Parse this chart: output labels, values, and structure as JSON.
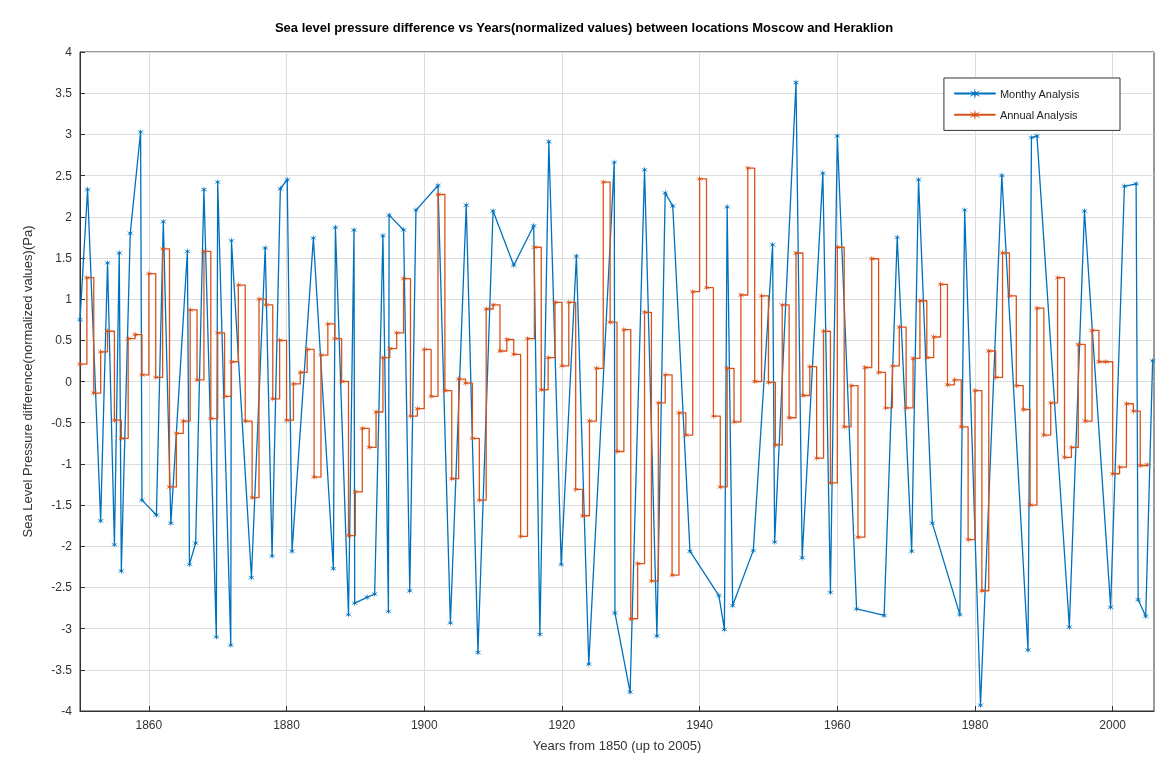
{
  "chart_data": {
    "type": "line",
    "title": "Sea level pressure difference vs Years(normalized values) between locations Moscow and Heraklion",
    "xlabel": "Years from 1850 (up to 2005)",
    "ylabel": "Sea Level Pressure difference(normalized values)(Pa)",
    "xlim": [
      1850,
      2006
    ],
    "xticks": [
      1860,
      1880,
      1900,
      1920,
      1940,
      1960,
      1980,
      2000
    ],
    "ylim": [
      -4,
      4
    ],
    "yticks": [
      -4,
      -3.5,
      -3,
      -2.5,
      -2,
      -1.5,
      -1,
      -0.5,
      0,
      0.5,
      1,
      1.5,
      2,
      2.5,
      3,
      3.5,
      4
    ],
    "grid": true,
    "legend": "top right",
    "marker": "cross",
    "line_style": "solid",
    "series": [
      {
        "name": "Monthy Analysis",
        "color": "#0072bd",
        "x": [
          1850.0,
          1851.1,
          1853.0,
          1854.0,
          1855.0,
          1855.7,
          1856.0,
          1857.3,
          1858.8,
          1859.0,
          1861.1,
          1862.1,
          1863.2,
          1865.6,
          1865.9,
          1866.8,
          1868.0,
          1869.8,
          1870.0,
          1871.9,
          1872.0,
          1874.9,
          1876.9,
          1877.9,
          1879.1,
          1880.1,
          1880.8,
          1883.9,
          1886.8,
          1887.1,
          1889.0,
          1889.8,
          1889.9,
          1891.7,
          1892.8,
          1894.0,
          1894.8,
          1894.9,
          1897.0,
          1897.9,
          1898.8,
          1902.0,
          1903.8,
          1906.1,
          1907.8,
          1910.0,
          1913.0,
          1915.9,
          1916.8,
          1918.1,
          1919.9,
          1922.1,
          1923.9,
          1927.6,
          1927.7,
          1929.9,
          1932.0,
          1933.8,
          1935.0,
          1936.1,
          1938.6,
          1942.8,
          1943.6,
          1944.0,
          1944.8,
          1947.8,
          1950.6,
          1950.9,
          1954.0,
          1954.9,
          1957.9,
          1959.0,
          1960.0,
          1962.8,
          1966.8,
          1968.7,
          1970.8,
          1971.8,
          1973.8,
          1977.8,
          1978.5,
          1980.8,
          1983.9,
          1987.7,
          1988.2,
          1989.0,
          1993.7,
          1995.9,
          1999.7,
          2001.7,
          2003.4,
          2003.7,
          2004.8,
          2005.8
        ],
        "values": [
          0.75,
          2.33,
          -1.69,
          1.44,
          -1.98,
          1.56,
          -2.3,
          1.8,
          3.03,
          -1.44,
          -1.62,
          1.94,
          -1.72,
          1.58,
          -2.22,
          -1.96,
          2.33,
          -3.1,
          2.42,
          -3.2,
          1.71,
          -2.38,
          1.62,
          -2.12,
          2.34,
          2.45,
          -2.06,
          1.74,
          -2.27,
          1.87,
          -2.83,
          1.84,
          -2.69,
          -2.62,
          -2.58,
          1.77,
          -2.79,
          2.02,
          1.84,
          -2.54,
          2.08,
          2.38,
          -2.93,
          2.14,
          -3.29,
          2.07,
          1.41,
          1.89,
          -3.07,
          2.91,
          -2.22,
          1.52,
          -3.43,
          2.66,
          -2.81,
          -3.77,
          2.57,
          -3.09,
          2.29,
          2.13,
          -2.06,
          -2.6,
          -3.01,
          2.12,
          -2.72,
          -2.05,
          1.66,
          -1.95,
          3.63,
          -2.14,
          2.53,
          -2.56,
          2.98,
          -2.76,
          -2.84,
          1.75,
          -2.06,
          2.45,
          -1.72,
          -2.83,
          2.08,
          -3.93,
          2.5,
          -3.26,
          2.96,
          2.98,
          -2.98,
          2.07,
          -2.74,
          2.37,
          2.4,
          -2.65,
          -2.85,
          0.25
        ]
      },
      {
        "name": "Annual Analysis",
        "type": "step",
        "color": "#d95319",
        "x": [
          1850,
          1851,
          1852,
          1853,
          1854,
          1855,
          1856,
          1857,
          1858,
          1859,
          1860,
          1861,
          1862,
          1863,
          1864,
          1865,
          1866,
          1867,
          1868,
          1869,
          1870,
          1871,
          1872,
          1873,
          1874,
          1875,
          1876,
          1877,
          1878,
          1879,
          1880,
          1881,
          1882,
          1883,
          1884,
          1885,
          1886,
          1887,
          1888,
          1889,
          1890,
          1891,
          1892,
          1893,
          1894,
          1895,
          1896,
          1897,
          1898,
          1899,
          1900,
          1901,
          1902,
          1903,
          1904,
          1905,
          1906,
          1907,
          1908,
          1909,
          1910,
          1911,
          1912,
          1913,
          1914,
          1915,
          1916,
          1917,
          1918,
          1919,
          1920,
          1921,
          1922,
          1923,
          1924,
          1925,
          1926,
          1927,
          1928,
          1929,
          1930,
          1931,
          1932,
          1933,
          1934,
          1935,
          1936,
          1937,
          1938,
          1939,
          1940,
          1941,
          1942,
          1943,
          1944,
          1945,
          1946,
          1947,
          1948,
          1949,
          1950,
          1951,
          1952,
          1953,
          1954,
          1955,
          1956,
          1957,
          1958,
          1959,
          1960,
          1961,
          1962,
          1963,
          1964,
          1965,
          1966,
          1967,
          1968,
          1969,
          1970,
          1971,
          1972,
          1973,
          1974,
          1975,
          1976,
          1977,
          1978,
          1979,
          1980,
          1981,
          1982,
          1983,
          1984,
          1985,
          1986,
          1987,
          1988,
          1989,
          1990,
          1991,
          1992,
          1993,
          1994,
          1995,
          1996,
          1997,
          1998,
          1999,
          2000,
          2001,
          2002,
          2003,
          2004,
          2005
        ],
        "values": [
          0.21,
          1.26,
          -0.14,
          0.36,
          0.61,
          -0.47,
          -0.69,
          0.52,
          0.57,
          0.08,
          1.31,
          0.05,
          1.61,
          -1.28,
          -0.63,
          -0.48,
          0.87,
          0.02,
          1.58,
          -0.45,
          0.59,
          -0.18,
          0.24,
          1.17,
          -0.48,
          -1.41,
          1.0,
          0.93,
          -0.21,
          0.5,
          -0.47,
          -0.03,
          0.11,
          0.39,
          -1.16,
          0.32,
          0.7,
          0.52,
          0.0,
          -1.87,
          -1.34,
          -0.57,
          -0.8,
          -0.37,
          0.29,
          0.4,
          0.59,
          1.25,
          -0.42,
          -0.33,
          0.39,
          -0.18,
          2.27,
          -0.11,
          -1.18,
          0.03,
          -0.02,
          -0.69,
          -1.44,
          0.88,
          0.93,
          0.37,
          0.51,
          0.33,
          -1.88,
          0.52,
          1.63,
          -0.1,
          0.29,
          0.96,
          0.19,
          0.96,
          -1.31,
          -1.63,
          -0.48,
          0.16,
          2.42,
          0.72,
          -0.85,
          0.63,
          -2.88,
          -2.21,
          0.84,
          -2.42,
          -0.26,
          0.08,
          -2.35,
          -0.38,
          -0.65,
          1.09,
          2.46,
          1.14,
          -0.42,
          -1.28,
          0.16,
          -0.49,
          1.05,
          2.59,
          0.0,
          1.04,
          -0.01,
          -0.77,
          0.93,
          -0.44,
          1.56,
          -0.17,
          0.18,
          -0.93,
          0.61,
          -1.23,
          1.63,
          -0.55,
          -0.05,
          -1.89,
          0.17,
          1.49,
          0.11,
          -0.32,
          0.19,
          0.66,
          -0.32,
          0.28,
          0.98,
          0.29,
          0.54,
          1.18,
          -0.04,
          0.02,
          -0.55,
          -1.92,
          -0.11,
          -2.54,
          0.37,
          0.05,
          1.56,
          1.04,
          -0.05,
          -0.34,
          -1.5,
          0.89,
          -0.65,
          -0.26,
          1.26,
          -0.92,
          -0.8,
          0.45,
          -0.48,
          0.62,
          0.24,
          0.24,
          -1.12,
          -1.04,
          -0.27,
          -0.36,
          -1.02,
          -1.01
        ]
      }
    ]
  }
}
